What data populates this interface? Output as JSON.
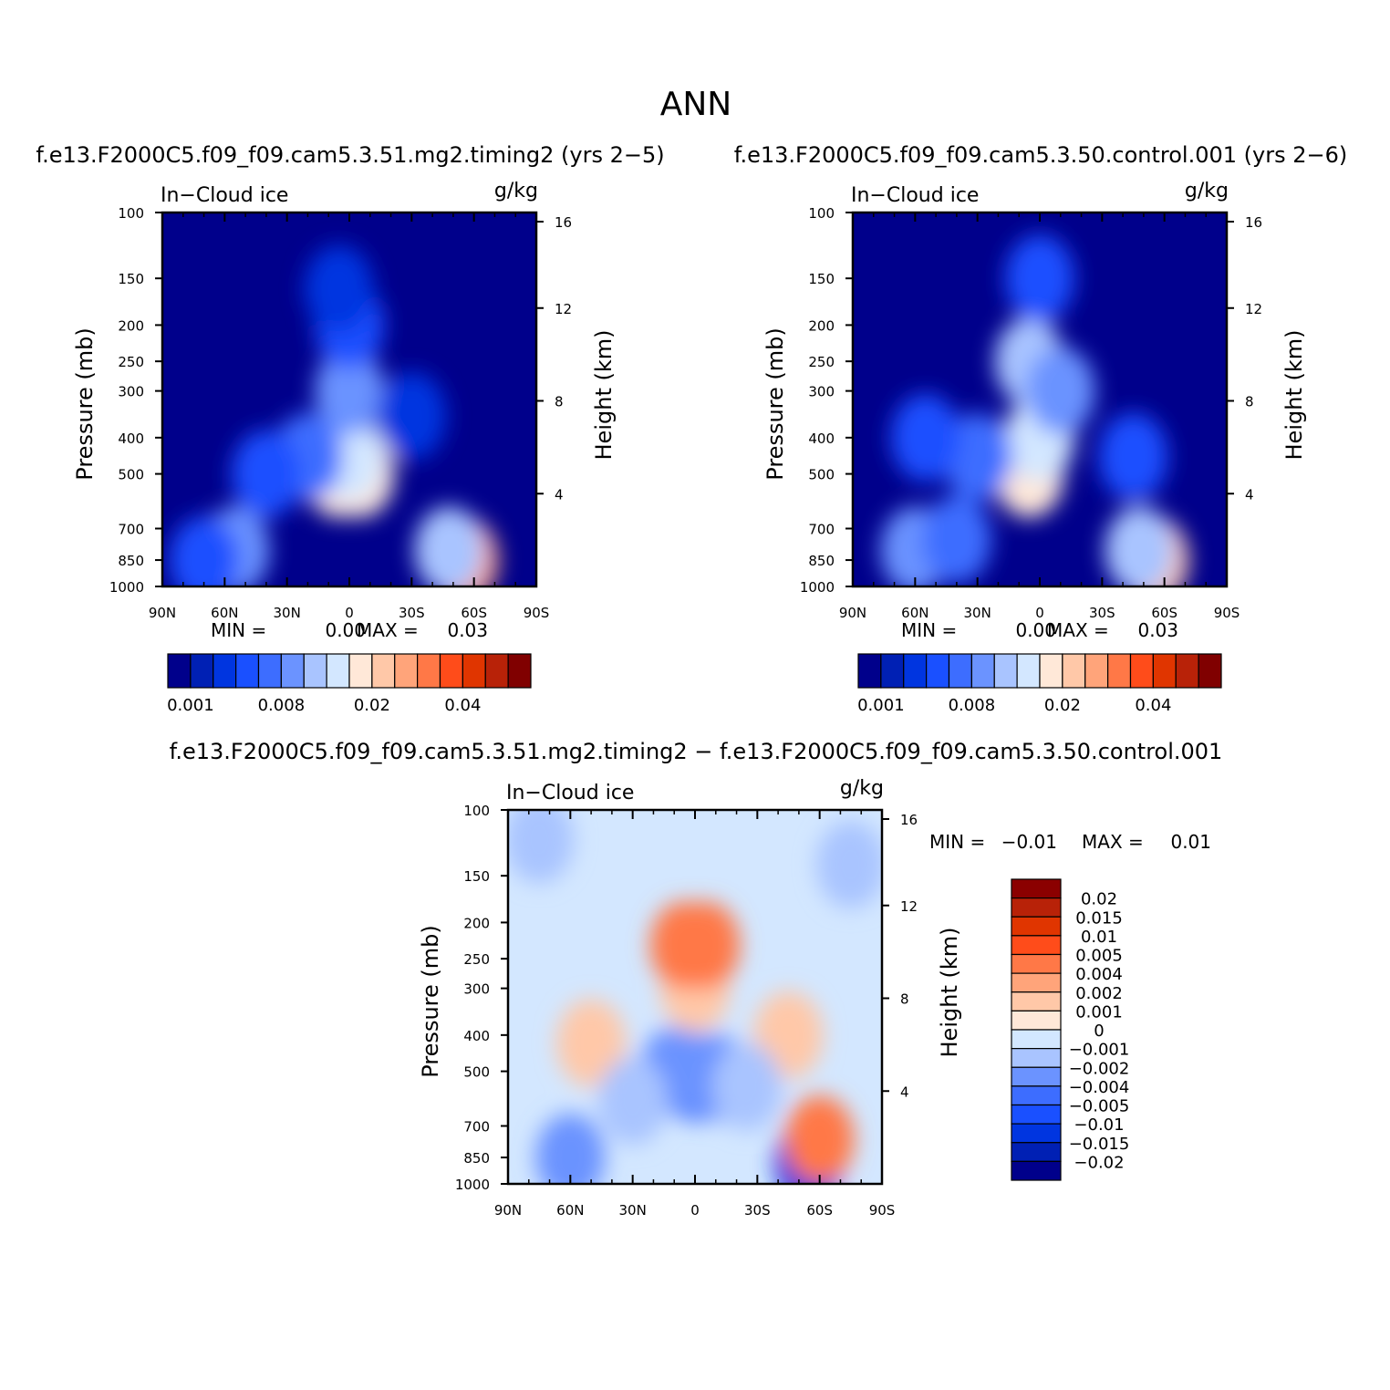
{
  "figure_title": "ANN",
  "chart_data": [
    {
      "type": "heatmap",
      "title": "f.e13.F2000C5.f09_f09.cam5.3.51.mg2.timing2 (yrs 2−5)",
      "subtitle_left": "In−Cloud ice",
      "subtitle_right": "g/kg",
      "ylabel": "Pressure (mb)",
      "ylabel_right": "Height (km)",
      "x_ticks": [
        "90N",
        "60N",
        "30N",
        "0",
        "30S",
        "60S",
        "90S"
      ],
      "xlim": [
        90,
        -90
      ],
      "y_ticks": [
        100,
        150,
        200,
        250,
        300,
        400,
        500,
        700,
        850,
        1000
      ],
      "ylim": [
        1000,
        100
      ],
      "y_scale": "log",
      "y_right_ticks": [
        16,
        12,
        8,
        4
      ],
      "stats": {
        "min_label": "MIN =",
        "min": "0.00",
        "max_label": "MAX =",
        "max": "0.03"
      },
      "colorbar": {
        "orientation": "horizontal",
        "tick_labels": [
          "0.001",
          "0.008",
          "0.02",
          "0.04"
        ],
        "colors": [
          "#00008b",
          "#0020b4",
          "#0035e0",
          "#1a50ff",
          "#3d6dff",
          "#6b93ff",
          "#a9c4ff",
          "#d3e7ff",
          "#ffe8d8",
          "#ffc8a8",
          "#ffa47a",
          "#ff7847",
          "#ff4c1a",
          "#e03500",
          "#b82208",
          "#800000"
        ]
      },
      "field": {
        "background_level": 0,
        "blobs": [
          {
            "lat": 5,
            "p": 500,
            "level": 8
          },
          {
            "lat": -5,
            "p": 500,
            "level": 8
          },
          {
            "lat": 0,
            "p": 450,
            "level": 7
          },
          {
            "lat": 0,
            "p": 300,
            "level": 5
          },
          {
            "lat": 0,
            "p": 200,
            "level": 3
          },
          {
            "lat": 5,
            "p": 160,
            "level": 2
          },
          {
            "lat": 20,
            "p": 450,
            "level": 4
          },
          {
            "lat": 40,
            "p": 500,
            "level": 3
          },
          {
            "lat": 55,
            "p": 800,
            "level": 5
          },
          {
            "lat": 70,
            "p": 850,
            "level": 3
          },
          {
            "lat": -55,
            "p": 850,
            "level": 10
          },
          {
            "lat": -48,
            "p": 800,
            "level": 6
          },
          {
            "lat": -30,
            "p": 350,
            "level": 2
          }
        ]
      }
    },
    {
      "type": "heatmap",
      "title": "f.e13.F2000C5.f09_f09.cam5.3.50.control.001 (yrs 2−6)",
      "subtitle_left": "In−Cloud ice",
      "subtitle_right": "g/kg",
      "ylabel": "Pressure (mb)",
      "ylabel_right": "Height (km)",
      "x_ticks": [
        "90N",
        "60N",
        "30N",
        "0",
        "30S",
        "60S",
        "90S"
      ],
      "xlim": [
        90,
        -90
      ],
      "y_ticks": [
        100,
        150,
        200,
        250,
        300,
        400,
        500,
        700,
        850,
        1000
      ],
      "ylim": [
        1000,
        100
      ],
      "y_scale": "log",
      "y_right_ticks": [
        16,
        12,
        8,
        4
      ],
      "stats": {
        "min_label": "MIN =",
        "min": "0.00",
        "max_label": "MAX =",
        "max": "0.03"
      },
      "colorbar": {
        "orientation": "horizontal",
        "tick_labels": [
          "0.001",
          "0.008",
          "0.02",
          "0.04"
        ],
        "colors": [
          "#00008b",
          "#0020b4",
          "#0035e0",
          "#1a50ff",
          "#3d6dff",
          "#6b93ff",
          "#a9c4ff",
          "#d3e7ff",
          "#ffe8d8",
          "#ffc8a8",
          "#ffa47a",
          "#ff7847",
          "#ff4c1a",
          "#e03500",
          "#b82208",
          "#800000"
        ]
      },
      "field": {
        "background_level": 0,
        "blobs": [
          {
            "lat": 5,
            "p": 500,
            "level": 8
          },
          {
            "lat": 0,
            "p": 400,
            "level": 7
          },
          {
            "lat": 5,
            "p": 250,
            "level": 6
          },
          {
            "lat": -10,
            "p": 300,
            "level": 5
          },
          {
            "lat": 0,
            "p": 150,
            "level": 3
          },
          {
            "lat": 30,
            "p": 450,
            "level": 4
          },
          {
            "lat": 55,
            "p": 400,
            "level": 3
          },
          {
            "lat": -45,
            "p": 450,
            "level": 3
          },
          {
            "lat": 60,
            "p": 800,
            "level": 5
          },
          {
            "lat": 40,
            "p": 750,
            "level": 4
          },
          {
            "lat": -55,
            "p": 850,
            "level": 9
          },
          {
            "lat": -48,
            "p": 800,
            "level": 6
          }
        ]
      }
    },
    {
      "type": "heatmap",
      "title": "f.e13.F2000C5.f09_f09.cam5.3.51.mg2.timing2 − f.e13.F2000C5.f09_f09.cam5.3.50.control.001",
      "subtitle_left": "In−Cloud ice",
      "subtitle_right": "g/kg",
      "ylabel": "Pressure (mb)",
      "ylabel_right": "Height (km)",
      "x_ticks": [
        "90N",
        "60N",
        "30N",
        "0",
        "30S",
        "60S",
        "90S"
      ],
      "xlim": [
        90,
        -90
      ],
      "y_ticks": [
        100,
        150,
        200,
        250,
        300,
        400,
        500,
        700,
        850,
        1000
      ],
      "ylim": [
        1000,
        100
      ],
      "y_scale": "log",
      "y_right_ticks": [
        16,
        12,
        8,
        4
      ],
      "stats": {
        "min_label": "MIN =",
        "min": "−0.01",
        "max_label": "MAX =",
        "max": "0.01"
      },
      "colorbar": {
        "orientation": "vertical",
        "tick_labels": [
          "0.02",
          "0.015",
          "0.01",
          "0.005",
          "0.004",
          "0.002",
          "0.001",
          "0",
          "−0.001",
          "−0.002",
          "−0.004",
          "−0.005",
          "−0.01",
          "−0.015",
          "−0.02"
        ],
        "colors": [
          "#8b0000",
          "#b82208",
          "#e03500",
          "#ff4c1a",
          "#ff7847",
          "#ffa47a",
          "#ffc8a8",
          "#ffe8d8",
          "#d3e7ff",
          "#a9c4ff",
          "#6b93ff",
          "#3d6dff",
          "#1a50ff",
          "#0035e0",
          "#0020b4",
          "#00008b"
        ]
      },
      "field": {
        "background_level": 8,
        "blobs": [
          {
            "lat": 0,
            "p": 300,
            "level": 6
          },
          {
            "lat": 5,
            "p": 230,
            "level": 4
          },
          {
            "lat": -5,
            "p": 230,
            "level": 4
          },
          {
            "lat": 50,
            "p": 420,
            "level": 6
          },
          {
            "lat": -45,
            "p": 400,
            "level": 6
          },
          {
            "lat": 0,
            "p": 520,
            "level": 11
          },
          {
            "lat": 10,
            "p": 500,
            "level": 10
          },
          {
            "lat": -10,
            "p": 520,
            "level": 10
          },
          {
            "lat": 30,
            "p": 600,
            "level": 9
          },
          {
            "lat": -25,
            "p": 550,
            "level": 9
          },
          {
            "lat": 60,
            "p": 850,
            "level": 10
          },
          {
            "lat": -55,
            "p": 880,
            "level": 13
          },
          {
            "lat": -60,
            "p": 760,
            "level": 4
          },
          {
            "lat": 75,
            "p": 120,
            "level": 9
          },
          {
            "lat": -75,
            "p": 140,
            "level": 9
          }
        ]
      }
    }
  ]
}
